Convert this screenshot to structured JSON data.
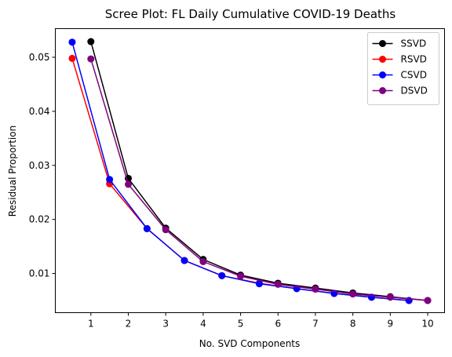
{
  "chart_data": {
    "type": "line",
    "title": "Scree Plot: FL Daily Cumulative COVID-19 Deaths",
    "xlabel": "No. SVD Components",
    "ylabel": "Residual Proportion",
    "xlim": [
      0.05,
      10.45
    ],
    "ylim": [
      0.00275,
      0.0553
    ],
    "xticks": [
      1,
      2,
      3,
      4,
      5,
      6,
      7,
      8,
      9,
      10
    ],
    "yticks": [
      0.01,
      0.02,
      0.03,
      0.04,
      0.05
    ],
    "ytick_labels": [
      "0.01",
      "0.02",
      "0.03",
      "0.04",
      "0.05"
    ],
    "grid": false,
    "legend_position": "top-right",
    "series": [
      {
        "name": "SSVD",
        "color": "#000000",
        "x": [
          1,
          2,
          3,
          4,
          5,
          6,
          7,
          8,
          9,
          10
        ],
        "y": [
          0.0529,
          0.0276,
          0.0184,
          0.0126,
          0.0097,
          0.0082,
          0.0073,
          0.0064,
          0.0057,
          0.005
        ]
      },
      {
        "name": "RSVD",
        "color": "#ff0000",
        "x": [
          0.5,
          1.5,
          2.5,
          3.5,
          4.5,
          5.5,
          6.5,
          7.5,
          8.5,
          9.5
        ],
        "y": [
          0.0498,
          0.0266,
          0.0183,
          0.0124,
          0.0096,
          0.0082,
          0.0072,
          0.0063,
          0.0056,
          0.005
        ]
      },
      {
        "name": "CSVD",
        "color": "#0000ff",
        "x": [
          0.5,
          1.5,
          2.5,
          3.5,
          4.5,
          5.5,
          6.5,
          7.5,
          8.5,
          9.5
        ],
        "y": [
          0.0528,
          0.0274,
          0.0183,
          0.0124,
          0.0096,
          0.0081,
          0.0072,
          0.0063,
          0.0056,
          0.005
        ]
      },
      {
        "name": "DSVD",
        "color": "#800080",
        "x": [
          1,
          2,
          3,
          4,
          5,
          6,
          7,
          8,
          9,
          10
        ],
        "y": [
          0.0497,
          0.0265,
          0.0181,
          0.0122,
          0.0095,
          0.008,
          0.0071,
          0.0062,
          0.0056,
          0.005
        ]
      }
    ]
  }
}
